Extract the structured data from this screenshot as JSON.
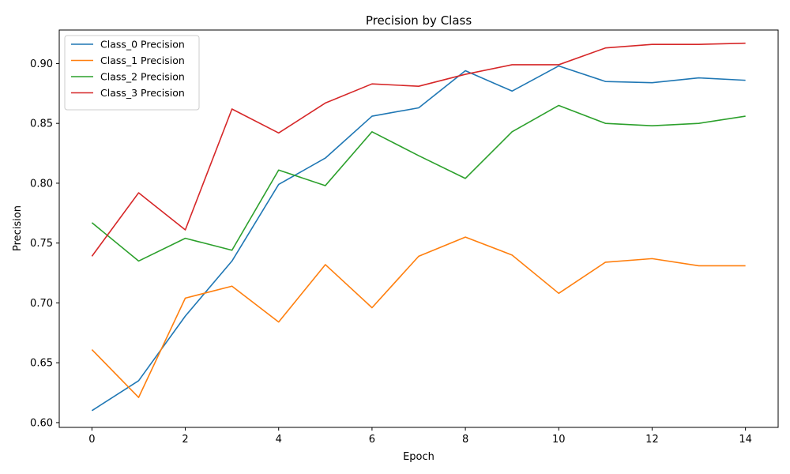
{
  "chart_data": {
    "type": "line",
    "title": "Precision by Class",
    "xlabel": "Epoch",
    "ylabel": "Precision",
    "x": [
      0,
      1,
      2,
      3,
      4,
      5,
      6,
      7,
      8,
      9,
      10,
      11,
      12,
      13,
      14
    ],
    "xlim": [
      -0.7,
      14.7
    ],
    "ylim": [
      0.596,
      0.928
    ],
    "xticks": [
      0,
      2,
      4,
      6,
      8,
      10,
      12,
      14
    ],
    "xtick_labels": [
      "0",
      "2",
      "4",
      "6",
      "8",
      "10",
      "12",
      "14"
    ],
    "yticks": [
      0.6,
      0.65,
      0.7,
      0.75,
      0.8,
      0.85,
      0.9
    ],
    "ytick_labels": [
      "0.60",
      "0.65",
      "0.70",
      "0.75",
      "0.80",
      "0.85",
      "0.90"
    ],
    "grid": false,
    "legend_position": "top-left",
    "series": [
      {
        "name": "Class_0 Precision",
        "color": "#1f77b4",
        "values": [
          0.61,
          0.635,
          0.689,
          0.735,
          0.799,
          0.821,
          0.856,
          0.863,
          0.894,
          0.877,
          0.898,
          0.885,
          0.884,
          0.888,
          0.886
        ]
      },
      {
        "name": "Class_1 Precision",
        "color": "#ff7f0e",
        "values": [
          0.661,
          0.621,
          0.704,
          0.714,
          0.684,
          0.732,
          0.696,
          0.739,
          0.755,
          0.74,
          0.708,
          0.734,
          0.737,
          0.731,
          0.731
        ]
      },
      {
        "name": "Class_2 Precision",
        "color": "#2ca02c",
        "values": [
          0.767,
          0.735,
          0.754,
          0.744,
          0.811,
          0.798,
          0.843,
          0.823,
          0.804,
          0.843,
          0.865,
          0.85,
          0.848,
          0.85,
          0.856
        ]
      },
      {
        "name": "Class_3 Precision",
        "color": "#d62728",
        "values": [
          0.739,
          0.792,
          0.761,
          0.862,
          0.842,
          0.867,
          0.883,
          0.881,
          0.891,
          0.899,
          0.899,
          0.913,
          0.916,
          0.916,
          0.917
        ]
      }
    ]
  }
}
